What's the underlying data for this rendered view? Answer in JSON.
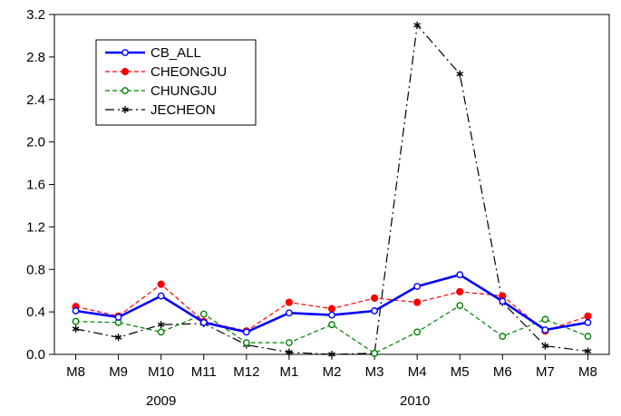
{
  "chart_data": {
    "type": "line",
    "title": "",
    "xlabel": "",
    "ylabel": "",
    "categories": [
      "M8",
      "M9",
      "M10",
      "M11",
      "M12",
      "M1",
      "M2",
      "M3",
      "M4",
      "M5",
      "M6",
      "M7",
      "M8"
    ],
    "year_labels": [
      "2009",
      "2010"
    ],
    "ylim": [
      0.0,
      3.2
    ],
    "yticks": [
      "0.0",
      "0.4",
      "0.8",
      "1.2",
      "1.6",
      "2.0",
      "2.4",
      "2.8",
      "3.2"
    ],
    "grid": false,
    "legend_position": "top-left",
    "series": [
      {
        "name": "CB_ALL",
        "color": "#0000ff",
        "line_style": "solid",
        "marker": "open-circle",
        "values": [
          0.41,
          0.35,
          0.55,
          0.3,
          0.21,
          0.39,
          0.37,
          0.41,
          0.64,
          0.75,
          0.5,
          0.23,
          0.3
        ]
      },
      {
        "name": "CHEONGJU",
        "color": "#ff0000",
        "line_style": "dashed",
        "marker": "filled-circle",
        "values": [
          0.45,
          0.36,
          0.66,
          0.31,
          0.22,
          0.49,
          0.43,
          0.53,
          0.49,
          0.59,
          0.55,
          0.22,
          0.36
        ]
      },
      {
        "name": "CHUNGJU",
        "color": "#008000",
        "line_style": "dashed",
        "marker": "open-circle",
        "values": [
          0.31,
          0.3,
          0.21,
          0.38,
          0.11,
          0.11,
          0.28,
          0.01,
          0.21,
          0.46,
          0.17,
          0.33,
          0.17
        ]
      },
      {
        "name": "JECHEON",
        "color": "#000000",
        "line_style": "long-dash",
        "marker": "asterisk",
        "values": [
          0.24,
          0.16,
          0.28,
          0.29,
          0.09,
          0.02,
          0.0,
          0.01,
          3.1,
          2.64,
          0.49,
          0.08,
          0.03
        ]
      }
    ]
  }
}
